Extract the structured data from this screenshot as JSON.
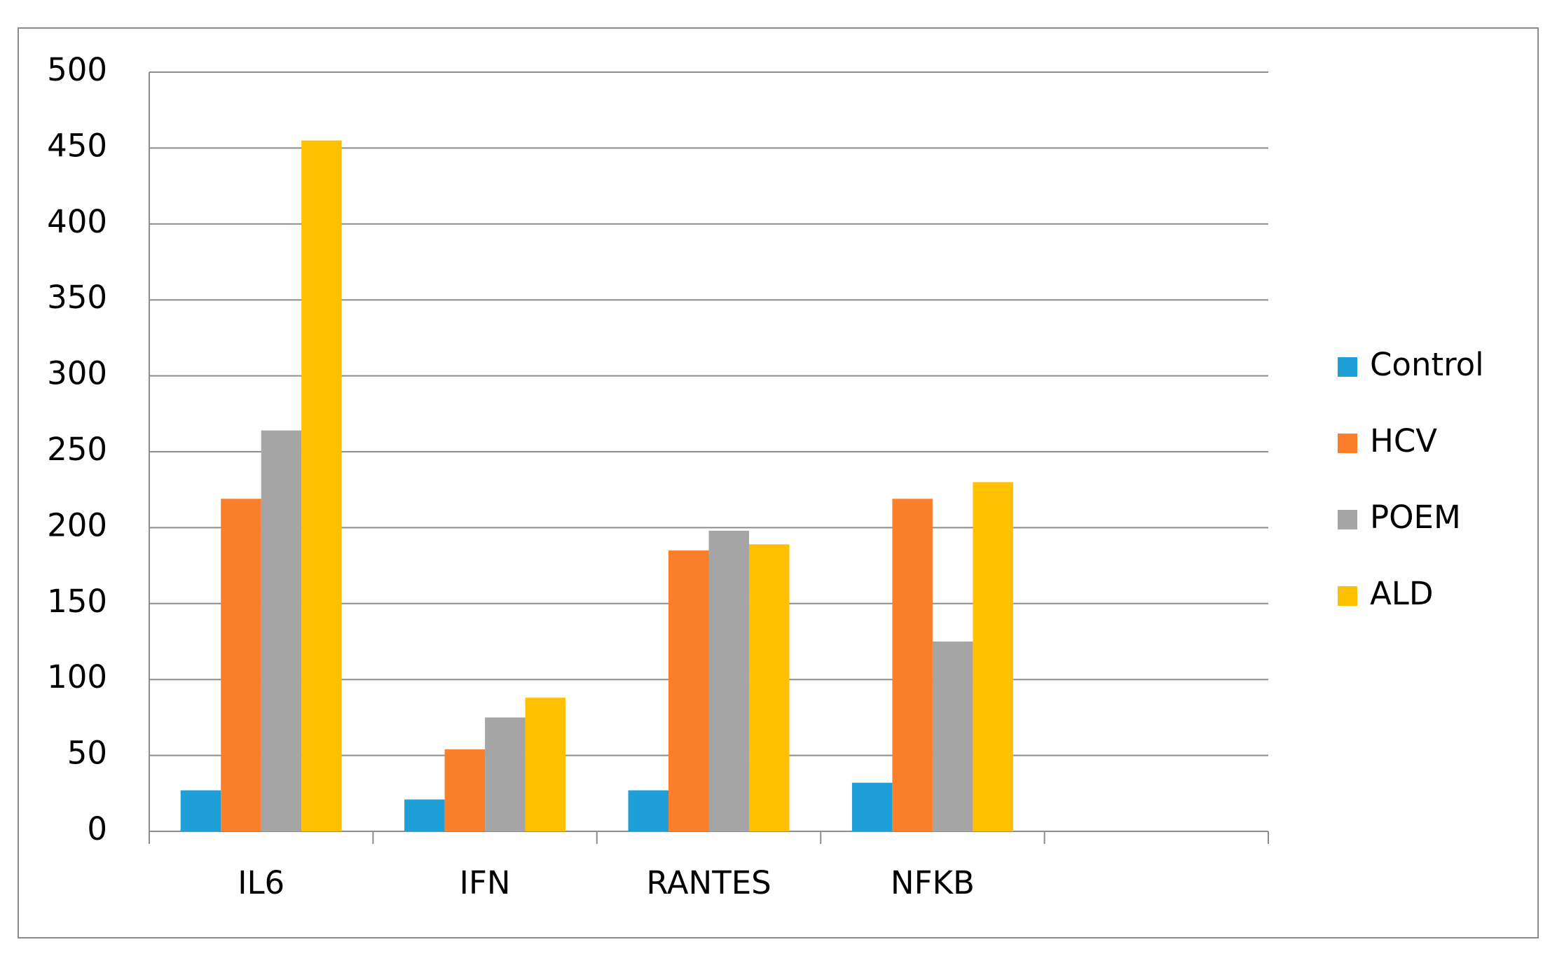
{
  "chart_data": {
    "type": "bar",
    "categories": [
      "IL6",
      "IFN",
      "RANTES",
      "NFKB",
      null
    ],
    "series": [
      {
        "name": "Control",
        "color": "#1f9fd8",
        "values": [
          27,
          21,
          27,
          32,
          null
        ]
      },
      {
        "name": "HCV",
        "color": "#fb7e2b",
        "values": [
          219,
          54,
          185,
          219,
          null
        ]
      },
      {
        "name": "POEM",
        "color": "#a5a5a5",
        "values": [
          264,
          75,
          198,
          125,
          null
        ]
      },
      {
        "name": "ALD",
        "color": "#fec000",
        "values": [
          455,
          88,
          189,
          230,
          null
        ]
      }
    ],
    "ylim": [
      0,
      500
    ],
    "yticks": [
      0,
      50,
      100,
      150,
      200,
      250,
      300,
      350,
      400,
      450,
      500
    ],
    "grid": true,
    "legend": "right"
  }
}
